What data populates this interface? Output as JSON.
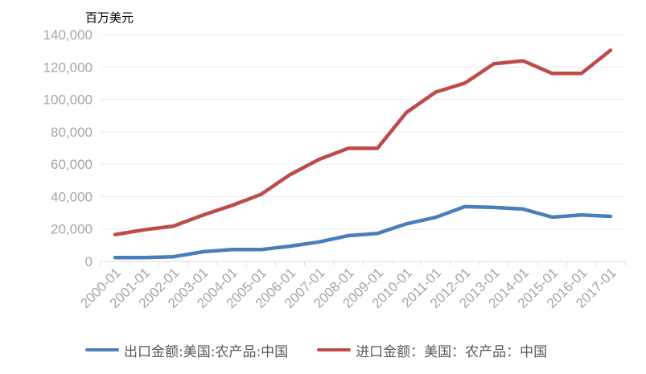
{
  "unit_label": "百万美元",
  "chart_data": {
    "type": "line",
    "x": [
      "2000-01",
      "2001-01",
      "2002-01",
      "2003-01",
      "2004-01",
      "2005-01",
      "2006-01",
      "2007-01",
      "2008-01",
      "2009-01",
      "2010-01",
      "2011-01",
      "2012-01",
      "2013-01",
      "2014-01",
      "2015-01",
      "2016-01",
      "2017-01"
    ],
    "ylim": [
      0,
      140000
    ],
    "yticks": [
      0,
      20000,
      40000,
      60000,
      80000,
      100000,
      120000,
      140000
    ],
    "ytick_labels": [
      "0",
      "20,000",
      "40,000",
      "60,000",
      "80,000",
      "100,000",
      "120,000",
      "140,000"
    ],
    "series": [
      {
        "name": "出口金额:美国:农产品:中国",
        "color": "#4a7ebb",
        "values": [
          2400,
          2400,
          2900,
          5900,
          7300,
          7300,
          9400,
          12000,
          15900,
          17300,
          23200,
          27200,
          33800,
          33300,
          32300,
          27300,
          28700,
          27800
        ]
      },
      {
        "name": "进口金额：美国：农产品：中国",
        "color": "#be4b48",
        "values": [
          16600,
          19500,
          21800,
          28500,
          34500,
          41300,
          53500,
          63000,
          69800,
          69800,
          92000,
          104500,
          110000,
          122000,
          123800,
          116000,
          116000,
          130300
        ]
      }
    ],
    "grid": true,
    "legend_position": "bottom"
  }
}
